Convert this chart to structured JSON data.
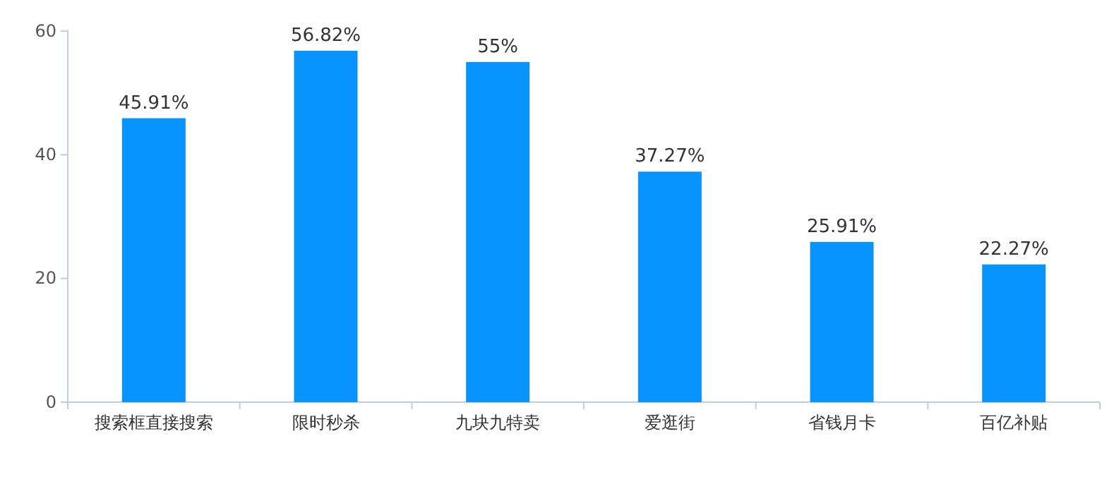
{
  "chart_data": {
    "type": "bar",
    "categories": [
      "搜索框直接搜索",
      "限时秒杀",
      "九块九特卖",
      "爱逛街",
      "省钱月卡",
      "百亿补贴"
    ],
    "values": [
      45.91,
      56.82,
      55,
      37.27,
      25.91,
      22.27
    ],
    "value_labels": [
      "45.91%",
      "56.82%",
      "55%",
      "37.27%",
      "25.91%",
      "22.27%"
    ],
    "color": "#0993fe",
    "ylim": [
      0,
      60
    ],
    "yticks": [
      0,
      20,
      40,
      60
    ],
    "grid": false
  }
}
